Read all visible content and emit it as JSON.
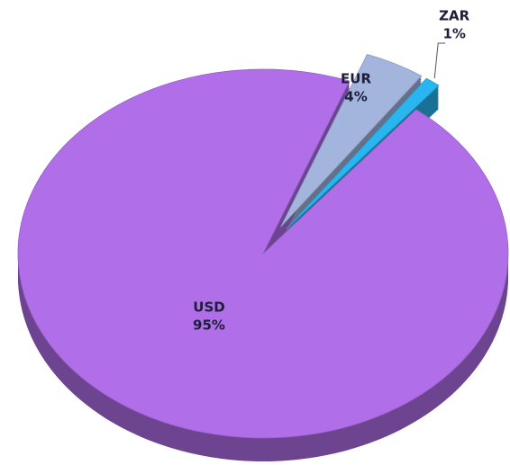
{
  "chart_data": {
    "type": "pie",
    "categories": [
      "EUR",
      "ZAR",
      "USD"
    ],
    "values": [
      4,
      1,
      95
    ],
    "value_labels": [
      "4%",
      "1%",
      "95%"
    ],
    "colors": [
      "#a3b4dd",
      "#29b6f0",
      "#b06ee8"
    ]
  }
}
